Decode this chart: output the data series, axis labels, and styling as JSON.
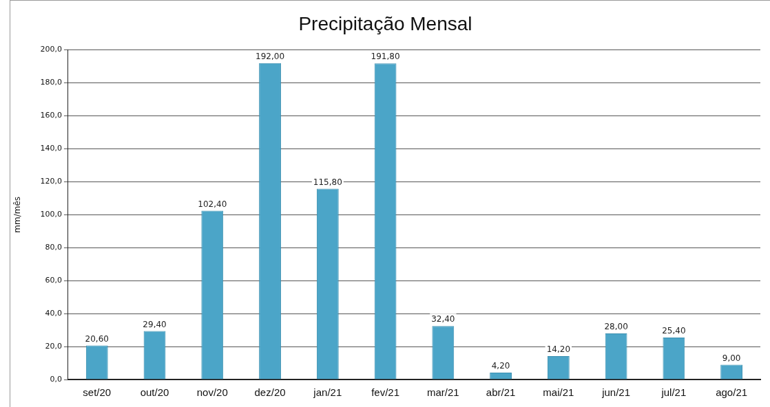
{
  "chart_data": {
    "type": "bar",
    "title": "Precipitação Mensal",
    "ylabel": "mm/mês",
    "categories": [
      "set/20",
      "out/20",
      "nov/20",
      "dez/20",
      "jan/21",
      "fev/21",
      "mar/21",
      "abr/21",
      "mai/21",
      "jun/21",
      "jul/21",
      "ago/21"
    ],
    "values": [
      20.6,
      29.4,
      102.4,
      192,
      115.8,
      191.8,
      32.4,
      4.2,
      14.2,
      28,
      25.4,
      9
    ],
    "value_labels": [
      "20,60",
      "29,40",
      "102,40",
      "192,00",
      "115,80",
      "191,80",
      "32,40",
      "4,20",
      "14,20",
      "28,00",
      "25,40",
      "9,00"
    ],
    "color": "#4ba5c8",
    "ylim": [
      0,
      200
    ],
    "yticks": [
      {
        "value": 0,
        "label": "0,0"
      },
      {
        "value": 20,
        "label": "20,0"
      },
      {
        "value": 40,
        "label": "40,0"
      },
      {
        "value": 60,
        "label": "60,0"
      },
      {
        "value": 80,
        "label": "80,0"
      },
      {
        "value": 100,
        "label": "100,0"
      },
      {
        "value": 120,
        "label": "120,0"
      },
      {
        "value": 140,
        "label": "140,0"
      },
      {
        "value": 160,
        "label": "160,0"
      },
      {
        "value": 180,
        "label": "180,0"
      },
      {
        "value": 200,
        "label": "200,0"
      }
    ],
    "grid": "y",
    "legend": false
  }
}
